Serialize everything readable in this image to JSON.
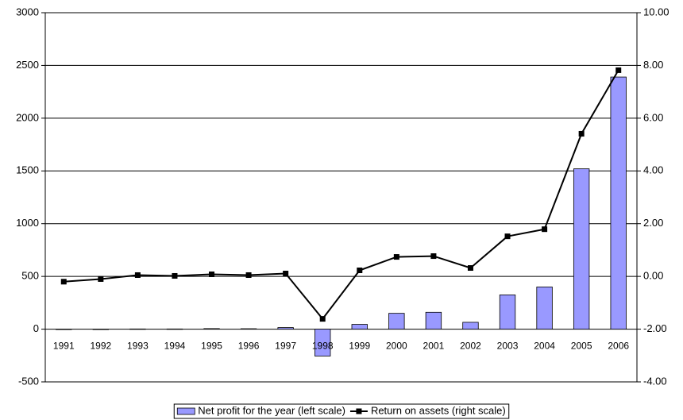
{
  "chart_data": {
    "type": "bar-line",
    "categories": [
      "1991",
      "1992",
      "1993",
      "1994",
      "1995",
      "1996",
      "1997",
      "1998",
      "1999",
      "2000",
      "2001",
      "2002",
      "2003",
      "2004",
      "2005",
      "2006"
    ],
    "series": [
      {
        "name": "Net profit for the year (left scale)",
        "type": "bar",
        "color": "#9999ff",
        "values": [
          -3,
          -2,
          2,
          2,
          5,
          4,
          15,
          -255,
          45,
          150,
          160,
          65,
          325,
          400,
          1520,
          2390
        ]
      },
      {
        "name": "Return on assets (right scale)",
        "type": "line",
        "axis": "y2",
        "color": "#000000",
        "values": [
          -0.2,
          -0.1,
          0.05,
          0.02,
          0.08,
          0.05,
          0.11,
          -1.61,
          0.23,
          0.74,
          0.77,
          0.32,
          1.52,
          1.79,
          5.41,
          7.82
        ]
      }
    ],
    "ylim": [
      -500,
      3000
    ],
    "yticks": [
      -500,
      0,
      500,
      1000,
      1500,
      2000,
      2500,
      3000
    ],
    "y2lim": [
      -4,
      10
    ],
    "y2ticks": [
      {
        "value": -4,
        "label": "-4.00"
      },
      {
        "value": -2,
        "label": "-2.00"
      },
      {
        "value": 0,
        "label": "0.00"
      },
      {
        "value": 2,
        "label": "2.00"
      },
      {
        "value": 4,
        "label": "4.00"
      },
      {
        "value": 6,
        "label": "6.00"
      },
      {
        "value": 8,
        "label": "8.00"
      },
      {
        "value": 10,
        "label": "10.00"
      }
    ],
    "grid": true,
    "legend": "bottom"
  }
}
